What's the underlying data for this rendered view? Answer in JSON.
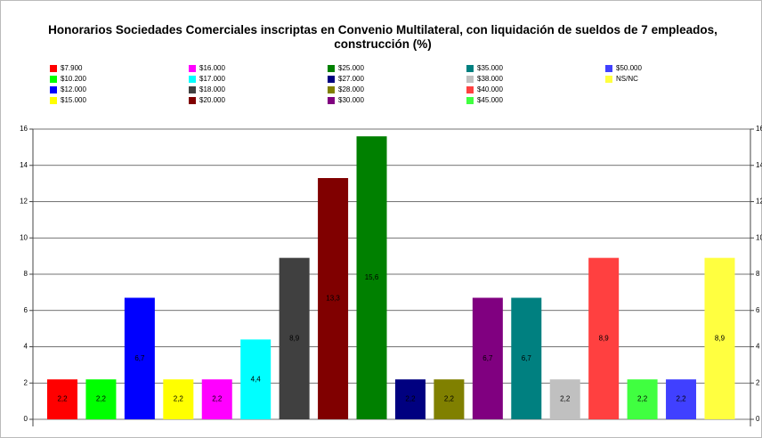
{
  "chart_data": {
    "type": "bar",
    "title": "Honorarios Sociedades Comerciales inscriptas en Convenio Multilateral, con liquidación de sueldos de 7 empleados, construcción (%)",
    "categories": [
      "$7.900",
      "$10.200",
      "$12.000",
      "$15.000",
      "$16.000",
      "$17.000",
      "$18.000",
      "$20.000",
      "$25.000",
      "$27.000",
      "$28.000",
      "$30.000",
      "$35.000",
      "$38.000",
      "$40.000",
      "$45.000",
      "$50.000",
      "NS/NC"
    ],
    "values": [
      2.2,
      2.2,
      6.7,
      2.2,
      2.2,
      4.4,
      8.9,
      13.3,
      15.6,
      2.2,
      2.2,
      6.7,
      6.7,
      2.2,
      8.9,
      2.2,
      2.2,
      8.9
    ],
    "value_labels": [
      "2,2",
      "2,2",
      "6,7",
      "2,2",
      "2,2",
      "4,4",
      "8,9",
      "13,3",
      "15,6",
      "2,2",
      "2,2",
      "6,7",
      "6,7",
      "2,2",
      "8,9",
      "2,2",
      "2,2",
      "8,9"
    ],
    "colors": [
      "#ff0000",
      "#00ff00",
      "#0000ff",
      "#ffff00",
      "#ff00ff",
      "#00ffff",
      "#404040",
      "#800000",
      "#008000",
      "#000080",
      "#808000",
      "#800080",
      "#008080",
      "#c0c0c0",
      "#ff4040",
      "#40ff40",
      "#4040ff",
      "#ffff40"
    ],
    "ylim": [
      0,
      16
    ],
    "yticks": [
      0,
      2,
      4,
      6,
      8,
      10,
      12,
      14,
      16
    ],
    "grid": true
  }
}
